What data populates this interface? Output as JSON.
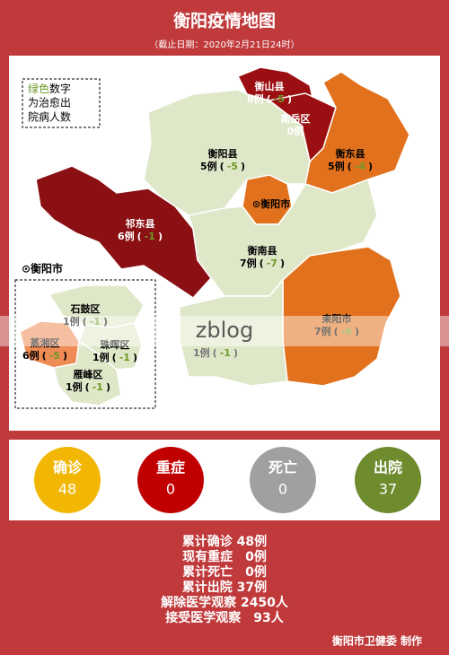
{
  "title": "衡阳疫情地图",
  "subtitle": "（截止日期：2020年2月21日24时）",
  "legend": {
    "green_word": "绿色",
    "rest_line1": "数字",
    "line2": "为治愈出",
    "line3": "院病人数"
  },
  "brackets": {
    "open": "(",
    "close": ")"
  },
  "map": {
    "regions": [
      {
        "name": "衡山县",
        "cases": "8例",
        "cured": "-5",
        "color": "#9b0f12",
        "text": "#ffffff"
      },
      {
        "name": "南岳区",
        "cases": "0例",
        "color": "#9b0f12",
        "text": "#ffffff"
      },
      {
        "name": "衡东县",
        "cases": "5例",
        "cured": "-4",
        "color": "#e2711d",
        "text": "#000000"
      },
      {
        "name": "衡阳县",
        "cases": "5例",
        "cured": "-5",
        "color": "#dfe7c9",
        "text": "#000000"
      },
      {
        "name": "⊙衡阳市",
        "color": "#e2711d",
        "text": "#000000"
      },
      {
        "name": "祁东县",
        "cases": "6例",
        "cured": "-1",
        "color": "#8a1013",
        "text": "#ffffff"
      },
      {
        "name": "衡南县",
        "cases": "7例",
        "cured": "-7",
        "color": "#dfe7c9",
        "text": "#000000"
      },
      {
        "name": "耒阳市",
        "cases": "7例",
        "cured": "-6",
        "color": "#e2711d",
        "text": "#000000"
      },
      {
        "cases": "1例",
        "cured": "-1",
        "color": "#dfe7c9",
        "text": "#777777"
      }
    ],
    "inset": {
      "title": "⊙衡阳市",
      "districts": [
        {
          "name": "石鼓区",
          "cases": "1例",
          "cured": "-1",
          "color": "#dfe7c9",
          "text": "#000000"
        },
        {
          "name": "蒸湘区",
          "cases": "6例",
          "cured": "-5",
          "color": "#ef8b55",
          "text": "#000000"
        },
        {
          "name": "珠晖区",
          "cases": "1例",
          "cured": "-1",
          "color": "#dfe7c9",
          "text": "#000000"
        },
        {
          "name": "雁峰区",
          "cases": "1例",
          "cured": "-1",
          "color": "#dfe7c9",
          "text": "#000000"
        }
      ]
    }
  },
  "watermark": "zblog",
  "summary": [
    {
      "label": "确诊",
      "value": "48",
      "color": "#f2b705"
    },
    {
      "label": "重症",
      "value": "0",
      "color": "#c00000"
    },
    {
      "label": "死亡",
      "value": "0",
      "color": "#a0a0a0"
    },
    {
      "label": "出院",
      "value": "37",
      "color": "#6e8b2e"
    }
  ],
  "stats": [
    "累计确诊 48例",
    "现有重症　0例",
    "累计死亡　0例",
    "累计出院 37例",
    "解除医学观察 2450人",
    "接受医学观察　93人"
  ],
  "footer": "衡阳市卫健委 制作"
}
